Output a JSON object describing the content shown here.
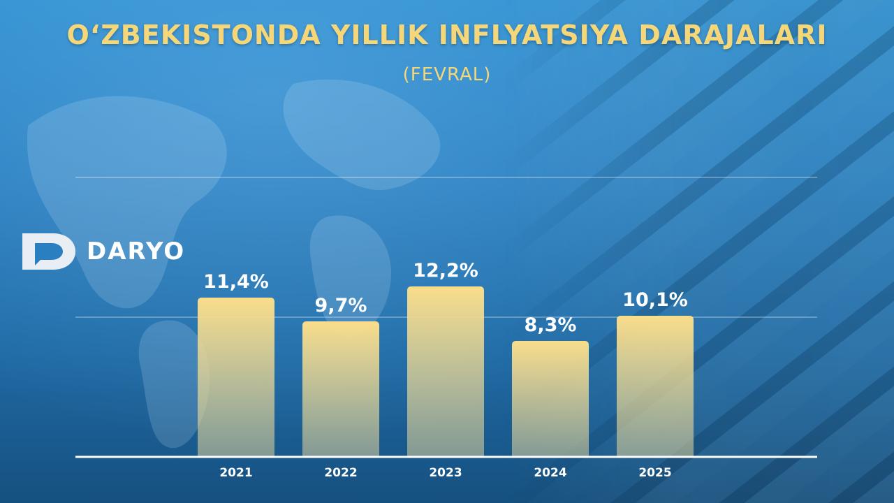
{
  "header": {
    "title": "O‘ZBEKISTONDA YILLIK INFLYATSIYA DARAJALARI",
    "subtitle": "(FEVRAL)"
  },
  "brand": {
    "name": "DARYO",
    "logo_icon": "daryo-speech-bubble-icon"
  },
  "colors": {
    "title": "#f5d77a",
    "bar_top": "#f9dd8b",
    "bar_bottom": "#c9c69a",
    "label": "#ffffff"
  },
  "chart_data": {
    "type": "bar",
    "categories": [
      "2021",
      "2022",
      "2023",
      "2024",
      "2025"
    ],
    "values": [
      11.4,
      9.7,
      12.2,
      8.3,
      10.1
    ],
    "value_labels": [
      "11,4%",
      "9,7%",
      "12,2%",
      "8,3%",
      "10,1%"
    ],
    "ylim": [
      0,
      20
    ],
    "grid": true,
    "gridlines": [
      10,
      20
    ]
  }
}
